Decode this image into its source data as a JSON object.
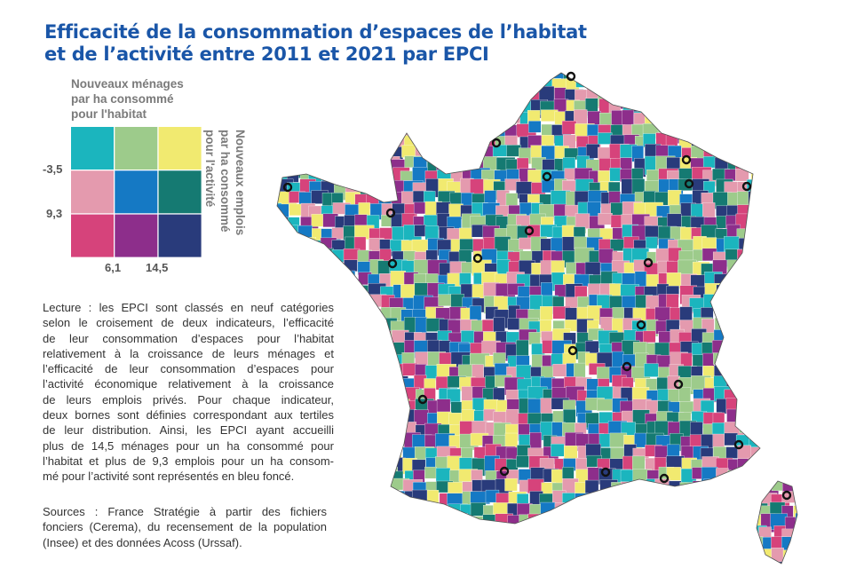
{
  "title": [
    "Efficacité de la consommation d’espaces de l’habitat",
    "et de l’activité entre 2011 et 2021 par EPCI"
  ],
  "legend": {
    "top_title": [
      "Nouveaux ménages",
      "par ha consommé",
      "pour l'habitat"
    ],
    "side_title": [
      "Nouveaux emplois",
      "par ha consommé",
      "pour l'activité"
    ],
    "x_thresholds": [
      "6,1",
      "14,5"
    ],
    "y_thresholds": [
      "-3,5",
      "9,3"
    ],
    "colors": [
      [
        "#1bb5be",
        "#9dcb8b",
        "#f1ea70"
      ],
      [
        "#e49aae",
        "#1579c4",
        "#157a72"
      ],
      [
        "#d6437b",
        "#8d2e8b",
        "#293b7b"
      ]
    ]
  },
  "reading": [
    "Lecture : les EPCI sont classés en neuf catégories",
    "selon le croisement de deux indicateurs, l’efficacité",
    "de leur consommation d’espaces pour l’habitat",
    "relativement à la croissance de leurs ménages et",
    "l’efficacité de leur consommation d’espaces pour",
    "l’activité économique relativement à la croissance",
    "de leurs emplois privés. Pour chaque indicateur,",
    "deux bornes sont définies correspondant aux tertiles",
    "de leur distribution. Ainsi, les EPCI ayant accueilli",
    "plus de 14,5 ménages pour un ha consommé pour",
    "l’habitat et plus de 9,3 emplois pour un ha consom-",
    "mé pour l’activité sont représentés en bleu foncé."
  ],
  "sources": [
    "Sources : France Stratégie à partir des fichiers",
    "fonciers (Cerema), du recensement de la population",
    "(Insee) et des données Acoss (Urssaf)."
  ]
}
